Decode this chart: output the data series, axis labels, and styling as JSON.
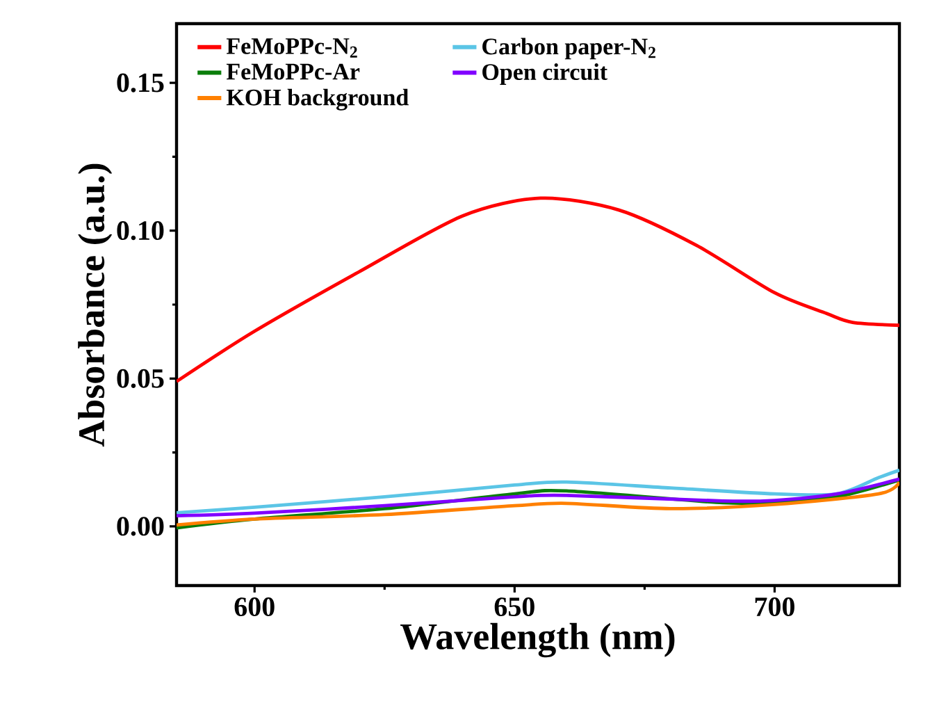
{
  "chart_data": {
    "type": "line",
    "xlabel": "Wavelength (nm)",
    "ylabel": "Absorbance (a.u.)",
    "xlim": [
      585,
      724
    ],
    "xticks": [
      600,
      650,
      700
    ],
    "ylim": [
      -0.02,
      0.17
    ],
    "yticks": [
      {
        "value": 0,
        "label": "0.00"
      },
      {
        "value": 0.05,
        "label": "0.05"
      },
      {
        "value": 0.1,
        "label": "0.10"
      },
      {
        "value": 0.15,
        "label": "0.15"
      }
    ],
    "legend": "top",
    "grid": false,
    "marker": "none",
    "line_style": "solid",
    "series": [
      {
        "name": "FeMoPPc-N$_{2}$",
        "color": "#ff0000",
        "x": [
          585,
          600,
          620,
          640,
          655,
          670,
          685,
          700,
          710,
          715,
          724
        ],
        "values": [
          0.049,
          0.066,
          0.086,
          0.105,
          0.111,
          0.107,
          0.095,
          0.079,
          0.072,
          0.069,
          0.068
        ]
      },
      {
        "name": "Carbon paper-N$_{2}$",
        "color": "#5bc5e6",
        "x": [
          585,
          600,
          625,
          650,
          660,
          680,
          700,
          712,
          720,
          724
        ],
        "values": [
          0.0046,
          0.0065,
          0.01,
          0.014,
          0.015,
          0.013,
          0.011,
          0.011,
          0.0165,
          0.019
        ]
      },
      {
        "name": "FeMoPPc-Ar",
        "color": "#0a7d0a",
        "x": [
          585,
          600,
          625,
          650,
          660,
          690,
          700,
          712,
          724
        ],
        "values": [
          -0.0005,
          0.0025,
          0.006,
          0.011,
          0.012,
          0.008,
          0.0083,
          0.01,
          0.0157
        ]
      },
      {
        "name": "Open circuit",
        "color": "#8000ff",
        "x": [
          585,
          600,
          625,
          650,
          660,
          690,
          700,
          712,
          724
        ],
        "values": [
          0.0036,
          0.0045,
          0.007,
          0.01,
          0.0105,
          0.0086,
          0.0088,
          0.011,
          0.016
        ]
      },
      {
        "name": "KOH background",
        "color": "#ff8000",
        "x": [
          585,
          600,
          625,
          650,
          660,
          680,
          700,
          720,
          724
        ],
        "values": [
          0.0005,
          0.0025,
          0.004,
          0.007,
          0.0078,
          0.006,
          0.0074,
          0.011,
          0.015
        ]
      }
    ]
  }
}
